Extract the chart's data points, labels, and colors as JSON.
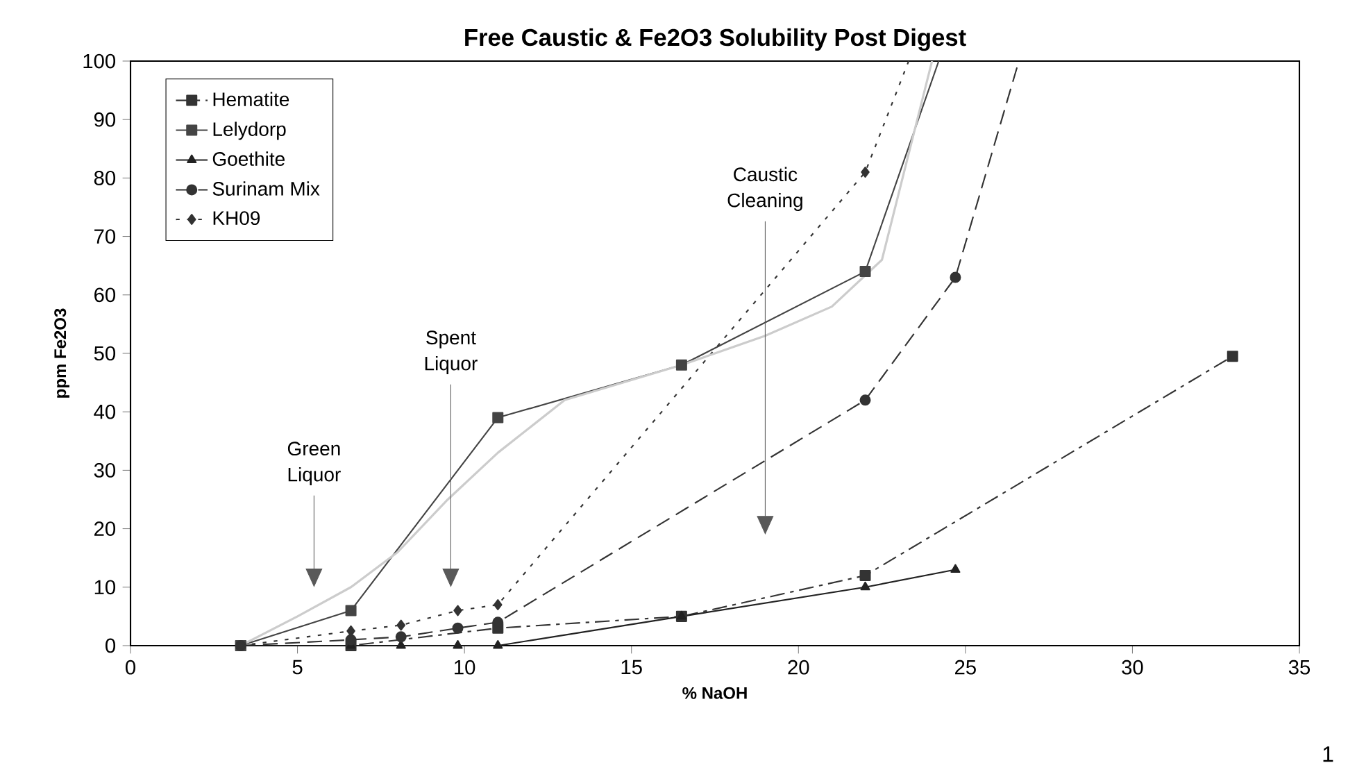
{
  "chart_data": {
    "type": "line",
    "title": "Free Caustic & Fe2O3 Solubility Post Digest",
    "xlabel": "% NaOH",
    "ylabel": "ppm Fe2O3",
    "xlim": [
      0,
      35
    ],
    "xticks": [
      0,
      5,
      10,
      15,
      20,
      25,
      30,
      35
    ],
    "ylim": [
      0,
      100
    ],
    "yticks": [
      0,
      10,
      20,
      30,
      40,
      50,
      60,
      70,
      80,
      90,
      100
    ],
    "grid": false,
    "legend": "top left",
    "series": [
      {
        "name": "Hematite",
        "color": "#333333",
        "marker": "square",
        "line_style": "dashdot",
        "x": [
          3.3,
          6.6,
          11,
          16.5,
          22,
          33
        ],
        "values": [
          0,
          0,
          3,
          5,
          12,
          49.5
        ]
      },
      {
        "name": "Lelydorp",
        "color": "#444444",
        "marker": "square",
        "line_style": "solid",
        "x": [
          3.3,
          6.6,
          11,
          16.5,
          22,
          24.2
        ],
        "values": [
          0,
          6,
          39,
          48,
          64,
          100
        ]
      },
      {
        "name": "Goethite",
        "color": "#222222",
        "marker": "triangle",
        "line_style": "solid",
        "x": [
          3.3,
          6.6,
          8.1,
          9.8,
          11,
          16.5,
          22,
          24.7
        ],
        "values": [
          0,
          0,
          0,
          0,
          0,
          5,
          10,
          13
        ]
      },
      {
        "name": "Surinam Mix",
        "color": "#333333",
        "marker": "circle",
        "line_style": "dashed",
        "x": [
          3.3,
          6.6,
          8.1,
          9.8,
          11,
          22,
          24.7,
          26.6
        ],
        "values": [
          0,
          1,
          1.5,
          3,
          4,
          42,
          63,
          100
        ]
      },
      {
        "name": "KH09",
        "color": "#333333",
        "marker": "diamond",
        "line_style": "dotted",
        "x": [
          3.3,
          6.6,
          8.1,
          9.8,
          11,
          22,
          23.3
        ],
        "values": [
          0,
          2.5,
          3.5,
          6,
          7,
          81,
          100
        ]
      },
      {
        "color": "#cccccc",
        "marker": "none",
        "line_style": "solid",
        "x": [
          3.3,
          5,
          6.6,
          8,
          9.5,
          11,
          13,
          16.5,
          19,
          21,
          22.5,
          24
        ],
        "values": [
          0,
          5,
          10,
          16,
          25,
          33,
          42,
          48,
          53,
          58,
          66,
          100
        ]
      }
    ],
    "annotations": [
      "Green Liquor",
      "Spent Liquor",
      "Caustic Cleaning",
      "1"
    ]
  }
}
